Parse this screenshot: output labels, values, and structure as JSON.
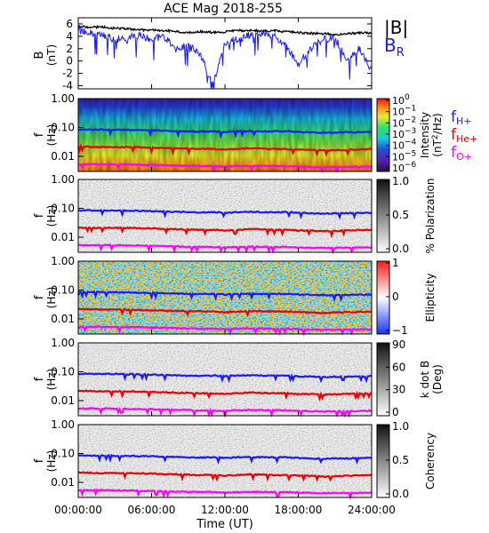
{
  "title": "ACE Mag 2018-255",
  "x_axis": {
    "label": "Time (UT)",
    "ticks": [
      "00:00:00",
      "06:00:00",
      "12:00:00",
      "18:00:00",
      "24:00:00"
    ],
    "tick_hours": [
      0,
      6,
      12,
      18,
      24
    ],
    "range_hours": [
      0,
      24
    ]
  },
  "freq_ticks": [
    "1.00",
    "0.10",
    "0.01"
  ],
  "freq_tick_values": [
    1.0,
    0.1,
    0.01
  ],
  "freq_range_hz": [
    0.003,
    1.0
  ],
  "freq_axis_label": [
    "f",
    "(Hz)"
  ],
  "legend": {
    "B_total": "|B|",
    "B_radial": "B",
    "B_radial_sub": "R",
    "fH": "f",
    "fH_sub": "H+",
    "fHe": "f",
    "fHe_sub": "He+",
    "fO": "f",
    "fO_sub": "O+"
  },
  "colors": {
    "B_total": "#000000",
    "B_radial": "#1a1aff",
    "fH": "#1a1aff",
    "fHe": "#ee0000",
    "fO": "#ff00ff"
  },
  "chart_data": [
    {
      "type": "line",
      "panel": "B",
      "title": "ACE Mag 2018-255",
      "xlabel": "Time (UT)",
      "ylabel": "B (nT)",
      "ylabel_main": "B",
      "ylabel_unit": "(nT)",
      "ylim": [
        -4.5,
        7
      ],
      "yticks": [
        -4,
        -2,
        0,
        2,
        4,
        6
      ],
      "x": [
        0,
        1,
        2,
        3,
        4,
        5,
        6,
        7,
        8,
        9,
        10,
        11,
        12,
        13,
        14,
        15,
        16,
        17,
        18,
        19,
        20,
        21,
        22,
        23,
        24
      ],
      "series": [
        {
          "name": "|B|",
          "values": [
            5.6,
            5.5,
            5.5,
            5.3,
            5.2,
            5.0,
            5.0,
            4.9,
            4.8,
            4.6,
            4.8,
            4.6,
            4.7,
            4.9,
            5.0,
            4.8,
            4.9,
            4.7,
            4.6,
            4.5,
            4.4,
            4.3,
            4.4,
            4.6,
            4.5
          ]
        },
        {
          "name": "B_R",
          "values": [
            5.0,
            4.6,
            4.2,
            3.5,
            3.8,
            4.1,
            3.5,
            4.0,
            2.0,
            2.5,
            1.0,
            -4.0,
            3.0,
            3.5,
            4.2,
            4.3,
            4.0,
            2.5,
            -0.5,
            2.0,
            3.5,
            3.8,
            0.0,
            2.0,
            -1.5
          ]
        }
      ]
    },
    {
      "type": "heatmap",
      "panel": "Intensity",
      "ylabel": "f (Hz)",
      "colorbar_label": "Intensity (nT^2/Hz)",
      "colorbar_label_main": "Intensity",
      "colorbar_label_unit": "(nT",
      "colorbar_label_end": "/Hz)",
      "colorbar_ticks": [
        "10",
        "10",
        "10",
        "10",
        "10",
        "10",
        "10"
      ],
      "colorbar_tick_exponents": [
        "0",
        "−1",
        "−2",
        "−3",
        "−4",
        "−5",
        "−6"
      ],
      "colorbar_tick_values": [
        1,
        0.1,
        0.01,
        0.001,
        0.0001,
        1e-05,
        1e-06
      ]
    },
    {
      "type": "heatmap",
      "panel": "Polarization",
      "ylabel": "f (Hz)",
      "colorbar_label": "% Polarization",
      "colorbar_ticks": [
        "1.0",
        "0.5",
        "0.0"
      ],
      "colorbar_tick_values": [
        1.0,
        0.5,
        0.0
      ]
    },
    {
      "type": "heatmap",
      "panel": "Ellipticity",
      "ylabel": "f (Hz)",
      "colorbar_label": "Ellipticity",
      "colorbar_ticks": [
        "1",
        "0",
        "−1"
      ],
      "colorbar_tick_values": [
        1,
        0,
        -1
      ]
    },
    {
      "type": "heatmap",
      "panel": "kdotB",
      "ylabel": "f (Hz)",
      "colorbar_label": "k dot B (Deg)",
      "colorbar_label_main": "k dot B",
      "colorbar_label_unit": "(Deg)",
      "colorbar_ticks": [
        "90",
        "60",
        "30",
        "0"
      ],
      "colorbar_tick_values": [
        90,
        60,
        30,
        0
      ]
    },
    {
      "type": "heatmap",
      "panel": "Coherency",
      "ylabel": "f (Hz)",
      "colorbar_label": "Coherency",
      "colorbar_ticks": [
        "1.0",
        "0.5",
        "0.0"
      ],
      "colorbar_tick_values": [
        1.0,
        0.5,
        0.0
      ]
    }
  ],
  "gyrofrequency_curves": {
    "x": [
      0,
      2,
      4,
      6,
      8,
      10,
      11,
      12,
      13,
      14,
      16,
      17,
      18,
      19,
      20,
      22,
      24
    ],
    "fH_plus": [
      0.085,
      0.085,
      0.082,
      0.08,
      0.075,
      0.072,
      0.074,
      0.07,
      0.074,
      0.075,
      0.073,
      0.074,
      0.07,
      0.068,
      0.066,
      0.068,
      0.07
    ],
    "fHe_plus": [
      0.022,
      0.021,
      0.021,
      0.02,
      0.019,
      0.018,
      0.018,
      0.017,
      0.018,
      0.019,
      0.018,
      0.018,
      0.017,
      0.017,
      0.016,
      0.017,
      0.018
    ],
    "fO_plus": [
      0.0053,
      0.0053,
      0.0052,
      0.005,
      0.0048,
      0.0046,
      0.0046,
      0.0044,
      0.0046,
      0.0047,
      0.0046,
      0.0046,
      0.0044,
      0.0043,
      0.0042,
      0.0043,
      0.0044
    ]
  }
}
